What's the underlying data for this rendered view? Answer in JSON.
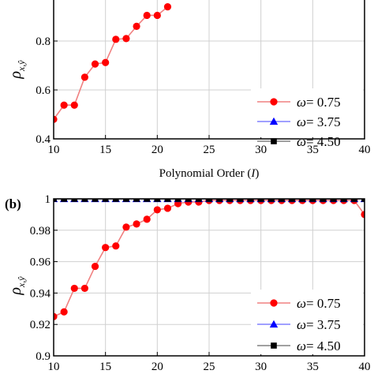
{
  "chart_data": [
    {
      "panel_label": "",
      "type": "line",
      "xlabel_text": "Polynomial Order (",
      "xlabel_var": "I",
      "xlabel_close": ")",
      "ylabel": "ρ",
      "ylabel_sub": "x,ŷ",
      "xlim": [
        10,
        40
      ],
      "ylim": [
        0.4,
        1.0
      ],
      "xticks": [
        "10",
        "15",
        "20",
        "25",
        "30",
        "35",
        "40"
      ],
      "yticks": [
        "0.4",
        "0.6",
        "0.8"
      ],
      "grid": true,
      "legend_position": "bottom-right",
      "series": [
        {
          "label_prefix": "ω",
          "label_value": "= 0.75",
          "color": "#ff0000",
          "line_color": "#f08080",
          "marker": "circle",
          "x": [
            10,
            11,
            12,
            13,
            14,
            15,
            16,
            17,
            18,
            19,
            20,
            21
          ],
          "y": [
            0.48,
            0.538,
            0.538,
            0.652,
            0.706,
            0.712,
            0.807,
            0.81,
            0.86,
            0.905,
            0.905,
            0.94
          ]
        },
        {
          "label_prefix": "ω",
          "label_value": "= 3.75",
          "color": "#0000ff",
          "line_color": "#8080ff",
          "marker": "triangle",
          "x": [],
          "y": []
        },
        {
          "label_prefix": "ω",
          "label_value": "= 4.50",
          "color": "#000000",
          "line_color": "#808080",
          "marker": "square",
          "x": [],
          "y": []
        }
      ]
    },
    {
      "panel_label": "(b)",
      "type": "line",
      "xlabel_text": "",
      "ylabel": "ρ",
      "ylabel_sub": "x,ŷ",
      "xlim": [
        10,
        40
      ],
      "ylim": [
        0.9,
        1.0
      ],
      "xticks": [
        "10",
        "15",
        "20",
        "25",
        "30",
        "35",
        "40"
      ],
      "yticks": [
        "0.9",
        "0.92",
        "0.94",
        "0.96",
        "0.98",
        "1"
      ],
      "grid": true,
      "legend_position": "bottom-right",
      "series": [
        {
          "label_prefix": "ω",
          "label_value": "= 0.75",
          "color": "#ff0000",
          "line_color": "#f08080",
          "marker": "circle",
          "x": [
            10,
            11,
            12,
            13,
            14,
            15,
            16,
            17,
            18,
            19,
            20,
            21,
            22,
            23,
            24,
            25,
            26,
            27,
            28,
            29,
            30,
            31,
            32,
            33,
            34,
            35,
            36,
            37,
            38,
            39,
            40
          ],
          "y": [
            0.925,
            0.928,
            0.943,
            0.943,
            0.957,
            0.969,
            0.97,
            0.982,
            0.984,
            0.987,
            0.993,
            0.994,
            0.997,
            0.998,
            0.998,
            0.999,
            0.999,
            0.999,
            0.999,
            0.999,
            0.999,
            0.999,
            0.999,
            0.999,
            0.999,
            0.999,
            0.999,
            0.999,
            0.999,
            0.999,
            0.99
          ]
        },
        {
          "label_prefix": "ω",
          "label_value": "= 3.75",
          "color": "#0000ff",
          "line_color": "#8080ff",
          "marker": "triangle",
          "x": [
            10,
            11,
            12,
            13,
            14,
            15,
            16,
            17,
            18,
            19,
            20,
            21,
            22,
            23,
            24,
            25,
            26,
            27,
            28,
            29,
            30,
            31,
            32,
            33,
            34,
            35,
            36,
            37,
            38,
            39,
            40
          ],
          "y": [
            1,
            1,
            1,
            1,
            1,
            1,
            1,
            1,
            1,
            1,
            1,
            1,
            1,
            1,
            1,
            1,
            1,
            1,
            1,
            1,
            1,
            1,
            1,
            1,
            1,
            1,
            1,
            1,
            1,
            1,
            1
          ]
        },
        {
          "label_prefix": "ω",
          "label_value": "= 4.50",
          "color": "#000000",
          "line_color": "#808080",
          "marker": "square",
          "x": [
            10,
            11,
            12,
            13,
            14,
            15,
            16,
            17,
            18,
            19,
            20,
            21,
            22,
            23,
            24,
            25,
            26,
            27,
            28,
            29,
            30,
            31,
            32,
            33,
            34,
            35,
            36,
            37,
            38,
            39,
            40
          ],
          "y": [
            1,
            1,
            1,
            1,
            1,
            1,
            1,
            1,
            1,
            1,
            1,
            1,
            1,
            1,
            1,
            1,
            1,
            1,
            1,
            1,
            1,
            1,
            1,
            1,
            1,
            1,
            1,
            1,
            1,
            1,
            1
          ]
        }
      ]
    }
  ]
}
